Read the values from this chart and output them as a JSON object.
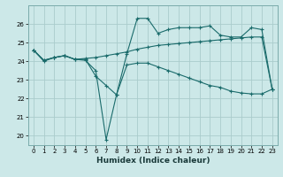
{
  "xlabel": "Humidex (Indice chaleur)",
  "bg_color": "#cce8e8",
  "grid_color": "#aacccc",
  "line_color": "#1a6b6b",
  "x": [
    0,
    1,
    2,
    3,
    4,
    5,
    6,
    7,
    8,
    9,
    10,
    11,
    12,
    13,
    14,
    15,
    16,
    17,
    18,
    19,
    20,
    21,
    22,
    23
  ],
  "series1": [
    24.6,
    24.0,
    24.2,
    24.3,
    24.1,
    24.1,
    23.2,
    22.7,
    22.2,
    24.4,
    26.3,
    26.3,
    25.5,
    25.7,
    25.8,
    25.8,
    25.8,
    25.9,
    25.4,
    25.3,
    25.3,
    25.8,
    25.7,
    22.5
  ],
  "series2": [
    24.6,
    24.05,
    24.2,
    24.3,
    24.1,
    24.15,
    24.2,
    24.3,
    24.4,
    24.5,
    24.65,
    24.75,
    24.85,
    24.9,
    24.95,
    25.0,
    25.05,
    25.1,
    25.15,
    25.2,
    25.25,
    25.3,
    25.3,
    22.5
  ],
  "series3": [
    24.6,
    24.05,
    24.2,
    24.3,
    24.1,
    24.05,
    23.5,
    19.8,
    22.2,
    23.8,
    23.9,
    23.9,
    23.7,
    23.5,
    23.3,
    23.1,
    22.9,
    22.7,
    22.6,
    22.4,
    22.3,
    22.25,
    22.25,
    22.5
  ],
  "ylim": [
    19.5,
    27.0
  ],
  "xlim": [
    -0.5,
    23.5
  ],
  "yticks": [
    20,
    21,
    22,
    23,
    24,
    25,
    26
  ],
  "xticks": [
    0,
    1,
    2,
    3,
    4,
    5,
    6,
    7,
    8,
    9,
    10,
    11,
    12,
    13,
    14,
    15,
    16,
    17,
    18,
    19,
    20,
    21,
    22,
    23
  ]
}
